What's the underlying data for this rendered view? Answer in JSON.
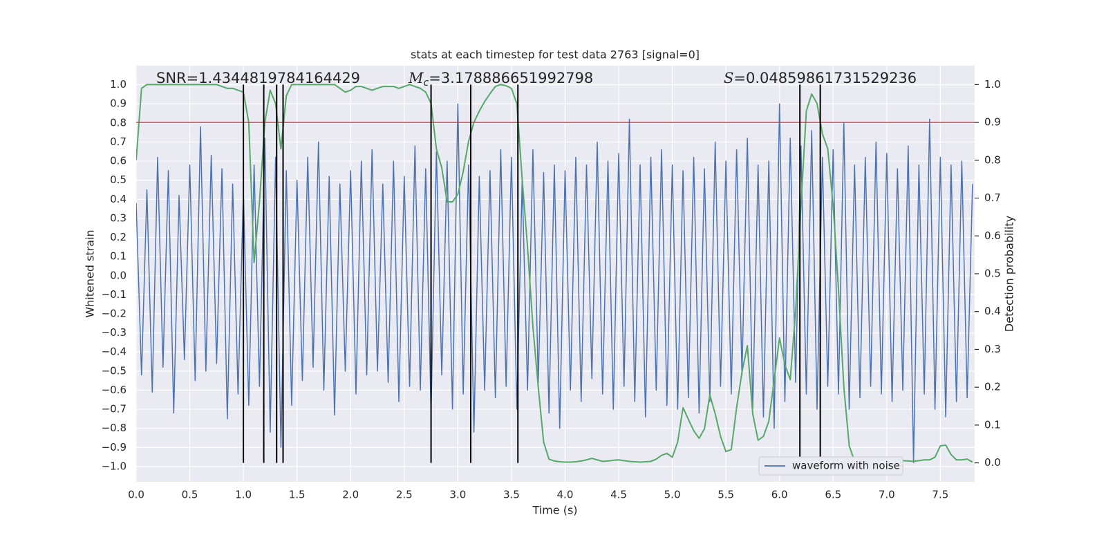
{
  "chart_data": {
    "type": "line",
    "title": "stats at each timestep for test data 2763 [signal=0]",
    "x_label": "Time (s)",
    "y_label": "Whitened strain",
    "y2_label": "Detection probability",
    "annotations": [
      {
        "text": "SNR=1.4344819784164429"
      },
      {
        "symbol": "M",
        "subscript": "c",
        "text": "=3.178886651992798"
      },
      {
        "symbol": "S",
        "text": "=0.04859861731529236"
      }
    ],
    "xlim": [
      0,
      7.82
    ],
    "ylim": [
      -1.08,
      1.1
    ],
    "y2lim": [
      -0.05,
      1.05
    ],
    "xticks": [
      {
        "value": 0,
        "label": "0.0"
      },
      0.5,
      {
        "value": 1,
        "label": "1.0"
      },
      1.5,
      {
        "value": 2,
        "label": "2.0"
      },
      2.5,
      {
        "value": 3,
        "label": "3.0"
      },
      3.5,
      {
        "value": 4,
        "label": "4.0"
      },
      4.5,
      {
        "value": 5,
        "label": "5.0"
      },
      5.5,
      {
        "value": 6,
        "label": "6.0"
      },
      6.5,
      {
        "value": 7,
        "label": "7.0"
      },
      7.5
    ],
    "yticks": [
      {
        "value": -1,
        "label": "−1.0"
      },
      {
        "value": -0.9,
        "label": "−0.9"
      },
      {
        "value": -0.8,
        "label": "−0.8"
      },
      {
        "value": -0.7,
        "label": "−0.7"
      },
      {
        "value": -0.6,
        "label": "−0.6"
      },
      {
        "value": -0.5,
        "label": "−0.5"
      },
      {
        "value": -0.4,
        "label": "−0.4"
      },
      {
        "value": -0.3,
        "label": "−0.3"
      },
      {
        "value": -0.2,
        "label": "−0.2"
      },
      {
        "value": -0.1,
        "label": "−0.1"
      },
      {
        "value": 0,
        "label": "0.0"
      },
      0.1,
      0.2,
      0.3,
      0.4,
      0.5,
      0.6,
      0.7,
      0.8,
      0.9,
      {
        "value": 1,
        "label": "1.0"
      }
    ],
    "y2ticks": [
      {
        "value": 0,
        "label": "0.0"
      },
      0.1,
      0.2,
      0.3,
      0.4,
      0.5,
      0.6,
      0.7,
      0.8,
      0.9,
      {
        "value": 1,
        "label": "1.0"
      }
    ],
    "grid": true,
    "legend": "lower right",
    "x": [
      0,
      0.05,
      0.1,
      0.15,
      0.2,
      0.25,
      0.3,
      0.35,
      0.4,
      0.45,
      0.5,
      0.55,
      0.6,
      0.65,
      0.7,
      0.75,
      0.8,
      0.85,
      0.9,
      0.95,
      1,
      1.05,
      1.1,
      1.15,
      1.2,
      1.25,
      1.3,
      1.35,
      1.4,
      1.45,
      1.5,
      1.55,
      1.6,
      1.65,
      1.7,
      1.75,
      1.8,
      1.85,
      1.9,
      1.95,
      2,
      2.05,
      2.1,
      2.15,
      2.2,
      2.25,
      2.3,
      2.35,
      2.4,
      2.45,
      2.5,
      2.55,
      2.6,
      2.65,
      2.7,
      2.75,
      2.8,
      2.85,
      2.9,
      2.95,
      3,
      3.05,
      3.1,
      3.15,
      3.2,
      3.25,
      3.3,
      3.35,
      3.4,
      3.45,
      3.5,
      3.55,
      3.6,
      3.65,
      3.7,
      3.75,
      3.8,
      3.85,
      3.9,
      3.95,
      4,
      4.05,
      4.1,
      4.15,
      4.2,
      4.25,
      4.3,
      4.35,
      4.4,
      4.45,
      4.5,
      4.55,
      4.6,
      4.65,
      4.7,
      4.75,
      4.8,
      4.85,
      4.9,
      4.95,
      5,
      5.05,
      5.1,
      5.15,
      5.2,
      5.25,
      5.3,
      5.35,
      5.4,
      5.45,
      5.5,
      5.55,
      5.6,
      5.65,
      5.7,
      5.75,
      5.8,
      5.85,
      5.9,
      5.95,
      6,
      6.05,
      6.1,
      6.15,
      6.2,
      6.25,
      6.3,
      6.35,
      6.4,
      6.45,
      6.5,
      6.55,
      6.6,
      6.65,
      6.7,
      6.75,
      6.8,
      6.85,
      6.9,
      6.95,
      7,
      7.05,
      7.1,
      7.15,
      7.2,
      7.25,
      7.3,
      7.35,
      7.4,
      7.45,
      7.5,
      7.55,
      7.6,
      7.65,
      7.7,
      7.75,
      7.8
    ],
    "series": [
      {
        "name": "waveform with noise",
        "color": "#4c72b0",
        "values": [
          0.38,
          -0.52,
          0.45,
          -0.61,
          0.62,
          -0.48,
          0.55,
          -0.72,
          0.42,
          -0.44,
          0.58,
          -0.55,
          0.78,
          -0.5,
          0.63,
          -0.46,
          0.56,
          -0.75,
          0.48,
          -0.62,
          0.44,
          -0.68,
          0.58,
          -0.58,
          0.72,
          -0.82,
          0.62,
          -0.9,
          0.55,
          -0.68,
          0.5,
          -0.55,
          0.62,
          -0.48,
          0.7,
          -0.6,
          0.52,
          -0.73,
          0.48,
          -0.5,
          0.55,
          -0.62,
          0.6,
          -0.52,
          0.66,
          -0.5,
          0.48,
          -0.56,
          0.6,
          -0.66,
          0.52,
          -0.58,
          0.68,
          -0.6,
          0.56,
          -0.72,
          0.65,
          -0.52,
          0.6,
          -0.7,
          0.9,
          -0.62,
          0.58,
          -0.82,
          0.52,
          -0.6,
          0.55,
          -0.64,
          0.66,
          -0.58,
          0.62,
          -0.7,
          0.5,
          -0.6,
          0.66,
          -0.56,
          0.54,
          -0.72,
          0.58,
          -0.8,
          0.55,
          -0.6,
          0.62,
          -0.66,
          0.58,
          -0.54,
          0.7,
          -0.62,
          0.6,
          -0.7,
          0.64,
          -0.58,
          0.82,
          -0.66,
          0.58,
          -0.74,
          0.62,
          -0.6,
          0.66,
          -0.68,
          0.58,
          -0.7,
          0.55,
          -0.64,
          0.62,
          -0.72,
          0.56,
          -0.66,
          0.7,
          -0.58,
          0.6,
          -0.62,
          0.66,
          -0.52,
          0.72,
          -0.7,
          0.58,
          -0.74,
          0.6,
          -0.8,
          0.9,
          -0.66,
          0.72,
          -0.56,
          0.68,
          -0.62,
          0.76,
          -0.7,
          0.62,
          -0.58,
          0.66,
          -0.62,
          0.8,
          -0.7,
          0.58,
          -0.64,
          0.62,
          -0.58,
          0.7,
          -0.62,
          0.64,
          -0.66,
          0.56,
          -0.6,
          0.68,
          -0.98,
          0.58,
          -0.62,
          0.82,
          -0.7,
          0.62,
          -0.74,
          0.58,
          -0.66,
          0.6,
          -0.64,
          0.48
        ]
      },
      {
        "color": "#55a868",
        "axis": "y2",
        "values": [
          0.8,
          0.99,
          1,
          1,
          1,
          1,
          1,
          1,
          1,
          1,
          1,
          1,
          1,
          1,
          1,
          1,
          0.995,
          0.99,
          0.99,
          0.985,
          0.98,
          0.9,
          0.53,
          0.69,
          0.9,
          0.985,
          0.95,
          0.83,
          0.97,
          1,
          1,
          1,
          1,
          1,
          1,
          1,
          1,
          1,
          0.99,
          0.98,
          0.985,
          0.995,
          0.995,
          0.99,
          0.985,
          0.99,
          0.995,
          0.995,
          0.995,
          0.99,
          0.995,
          1,
          0.995,
          0.99,
          0.98,
          0.95,
          0.83,
          0.78,
          0.69,
          0.69,
          0.71,
          0.77,
          0.85,
          0.9,
          0.93,
          0.955,
          0.976,
          0.995,
          1,
          0.997,
          0.99,
          0.95,
          0.75,
          0.57,
          0.36,
          0.2,
          0.055,
          0.01,
          0.005,
          0.003,
          0.002,
          0.002,
          0.003,
          0.005,
          0.008,
          0.012,
          0.008,
          0.004,
          0.005,
          0.007,
          0.008,
          0.006,
          0.004,
          0.003,
          0.002,
          0.003,
          0.004,
          0.01,
          0.02,
          0.025,
          0.015,
          0.055,
          0.146,
          0.115,
          0.085,
          0.065,
          0.09,
          0.18,
          0.13,
          0.07,
          0.03,
          0.035,
          0.146,
          0.24,
          0.31,
          0.13,
          0.06,
          0.07,
          0.11,
          0.22,
          0.33,
          0.26,
          0.22,
          0.4,
          0.68,
          0.93,
          0.975,
          0.95,
          0.87,
          0.83,
          0.68,
          0.46,
          0.2,
          0.045,
          0.004,
          0.002,
          0.002,
          0.002,
          0.002,
          0.003,
          0.003,
          0.004,
          0.005,
          0.006,
          0.005,
          0.004,
          0.006,
          0.008,
          0.008,
          0.015,
          0.045,
          0.047,
          0.022,
          0.008,
          0.008,
          0.01,
          0.002
        ]
      }
    ],
    "vlines": {
      "x": [
        1,
        1.19,
        1.31,
        1.37,
        2.75,
        3.12,
        3.56,
        6.19,
        6.38
      ],
      "y2range": [
        0,
        1
      ],
      "color": "#000000"
    },
    "hline": {
      "value": 0.9,
      "axis": "y2",
      "color": "#c44e52"
    }
  }
}
